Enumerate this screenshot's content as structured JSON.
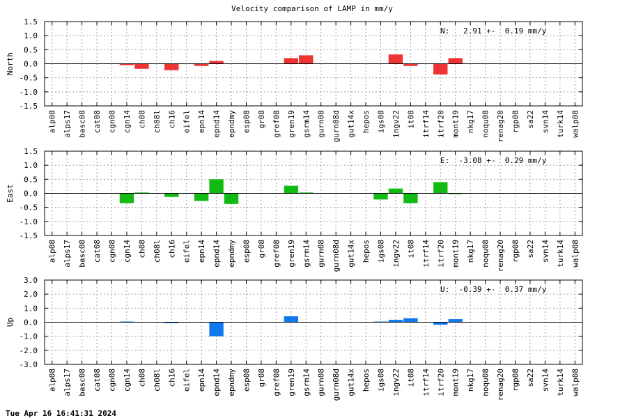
{
  "title": "Velocity comparison of LAMP in mm/y",
  "timestamp": "Tue Apr 16 16:41:31 2024",
  "stations": [
    "alp08",
    "alps17",
    "basc08",
    "cat08",
    "cgn08",
    "cgn14",
    "ch08",
    "ch08l",
    "ch16",
    "eifel",
    "epn14",
    "epnd14",
    "epndmy",
    "esp08",
    "gr08",
    "gref08",
    "gren19",
    "gsrm14",
    "gurn08",
    "gurn08d",
    "gut14x",
    "hepos",
    "igs08",
    "ingv22",
    "it08",
    "itrf14",
    "itrf20",
    "mont19",
    "nkg17",
    "noqu08",
    "renag20",
    "rgp08",
    "sa22",
    "svn14",
    "turk14",
    "walp08"
  ],
  "colors": {
    "north": "#ee3333",
    "east": "#11bb11",
    "up": "#1177ee"
  },
  "chart_data": [
    {
      "type": "bar",
      "ylabel": "North",
      "ylim": [
        -1.5,
        1.5
      ],
      "yticks": [
        "1.5",
        "1.0",
        "0.5",
        "0.0",
        "-0.5",
        "-1.0",
        "-1.5"
      ],
      "grid": true,
      "annotation": "N:   2.91 +-  0.19 mm/y",
      "values": [
        0,
        0,
        0,
        0,
        0,
        -0.05,
        -0.18,
        0,
        -0.23,
        0,
        -0.08,
        0.1,
        0,
        0,
        0,
        0,
        0.2,
        0.3,
        0,
        0,
        0,
        0,
        0,
        0.33,
        -0.08,
        0,
        -0.38,
        0.2,
        0,
        0,
        0,
        0,
        0,
        0,
        0,
        0
      ]
    },
    {
      "type": "bar",
      "ylabel": "East",
      "ylim": [
        -1.5,
        1.5
      ],
      "yticks": [
        "1.5",
        "1.0",
        "0.5",
        "0.0",
        "-0.5",
        "-1.0",
        "-1.5"
      ],
      "grid": true,
      "annotation": "E:  -3.08 +-  0.29 mm/y",
      "values": [
        0,
        0,
        0,
        0,
        0,
        -0.35,
        0.03,
        0,
        -0.13,
        0,
        -0.27,
        0.5,
        -0.38,
        0,
        0,
        0,
        0.27,
        0.03,
        0,
        0,
        0,
        0,
        -0.22,
        0.17,
        -0.35,
        0,
        0.4,
        -0.03,
        0,
        0,
        0,
        0,
        0,
        0,
        0,
        0
      ]
    },
    {
      "type": "bar",
      "ylabel": "Up",
      "ylim": [
        -3.0,
        3.0
      ],
      "yticks": [
        "3.0",
        "2.0",
        "1.0",
        "0.0",
        "-1.0",
        "-2.0",
        "-3.0"
      ],
      "grid": true,
      "annotation": "U:  -0.39 +-  0.37 mm/y",
      "values": [
        0,
        0,
        0,
        0,
        0,
        0.05,
        0,
        0,
        -0.07,
        0,
        0,
        -1.0,
        0,
        0,
        0,
        0,
        0.42,
        0,
        0,
        0,
        0,
        0,
        0.05,
        0.17,
        0.28,
        0,
        -0.18,
        0.22,
        0,
        0,
        0,
        0,
        0,
        0,
        0,
        0
      ]
    }
  ]
}
